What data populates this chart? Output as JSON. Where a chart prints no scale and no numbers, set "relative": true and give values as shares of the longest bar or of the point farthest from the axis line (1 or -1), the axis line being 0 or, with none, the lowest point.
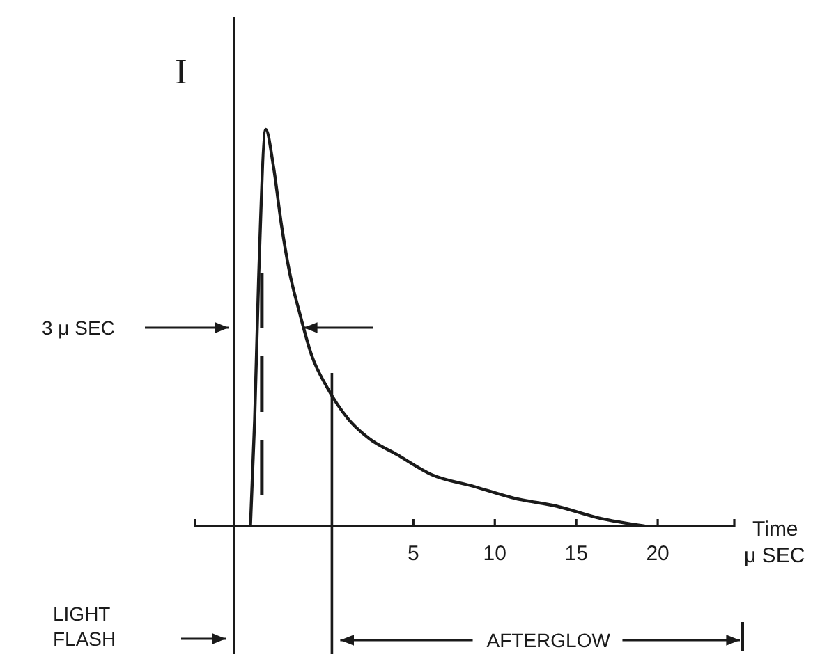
{
  "chart_data": {
    "type": "line",
    "relative": true,
    "ylabel": "I",
    "xlabel": "Time\nμ SEC",
    "x": [
      -5.0,
      -4.74,
      -4.5,
      -4.06,
      -3.6,
      -3.1,
      -2.6,
      -2.0,
      -1.24,
      -0.3,
      1.0,
      2.3,
      4.0,
      6.1,
      8.7,
      11.2,
      13.8,
      16.4,
      19.2
    ],
    "series": [
      {
        "color": "#1a1a1a",
        "values": [
          0,
          0.27,
          0.62,
          1,
          0.91,
          0.76,
          0.64,
          0.54,
          0.43,
          0.35,
          0.27,
          0.22,
          0.18,
          0.13,
          0.1,
          0.07,
          0.05,
          0.02,
          0
        ]
      }
    ],
    "xlim": [
      -8.4,
      24.7
    ],
    "xticks": [
      5,
      10,
      15,
      20
    ],
    "ref_lines": [
      {
        "axis": "x",
        "value": -6,
        "line_style": "solid"
      },
      {
        "axis": "x",
        "value": 0,
        "line_style": "solid"
      },
      {
        "axis": "x",
        "value": -4.3,
        "line_style": "dashed"
      }
    ],
    "annotations": [
      "3 μ SEC",
      "LIGHT FLASH",
      "AFTERGLOW"
    ]
  }
}
